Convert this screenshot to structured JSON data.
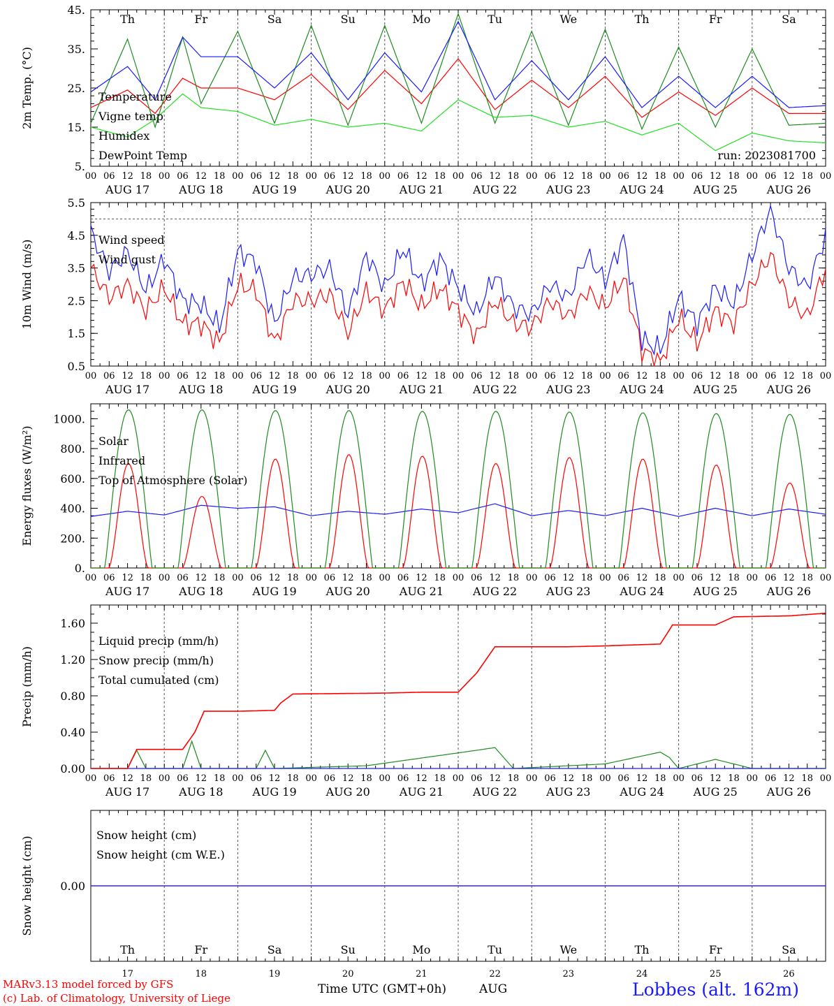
{
  "colors": {
    "red": "#ff0000",
    "green": "#1e8c1e",
    "blue": "#1a1aff",
    "lightgreen": "#22e022",
    "purple": "#8a2be2"
  },
  "run_label": "run: 2023081700",
  "date_labels": [
    "AUG 17",
    "AUG 18",
    "AUG 19",
    "AUG 20",
    "AUG 21",
    "AUG 22",
    "AUG 23",
    "AUG 24",
    "AUG 25",
    "AUG 26"
  ],
  "hour_labels": [
    "00",
    "06",
    "12",
    "18"
  ],
  "weekdays": [
    {
      "label": "Th",
      "weekend": false
    },
    {
      "label": "Fr",
      "weekend": false
    },
    {
      "label": "Sa",
      "weekend": true
    },
    {
      "label": "Su",
      "weekend": true
    },
    {
      "label": "Mo",
      "weekend": false
    },
    {
      "label": "Tu",
      "weekend": false
    },
    {
      "label": "We",
      "weekend": false
    },
    {
      "label": "Th",
      "weekend": false
    },
    {
      "label": "Fr",
      "weekend": false
    },
    {
      "label": "Sa",
      "weekend": true
    }
  ],
  "day_numbers": [
    "17",
    "18",
    "19",
    "20",
    "21",
    "22",
    "23",
    "24",
    "25",
    "26"
  ],
  "xaxis_title": "Time UTC (GMT+0h)",
  "xaxis_month": "AUG",
  "footer": {
    "line1": "MARv3.13 model forced by GFS",
    "line2": "(c) Lab. of Climatology, University of Liege",
    "station": "Lobbes (alt. 162m)"
  },
  "chart_data": [
    {
      "type": "line",
      "ylabel": "2m Temp. (°C)",
      "ytick_labels": [
        "5.",
        "15.",
        "25.",
        "35.",
        "45."
      ],
      "ylim": [
        5,
        45
      ],
      "x_unit": "hours since AUG 17 00 UTC",
      "series": [
        {
          "name": "Temperature",
          "color": "#ff0000",
          "x": [
            0,
            12,
            21,
            30,
            36,
            48,
            60,
            72,
            84,
            96,
            108,
            120,
            132,
            144,
            156,
            168,
            180,
            192,
            204,
            216,
            228,
            240
          ],
          "y": [
            20,
            24.5,
            18.5,
            27.5,
            25,
            25,
            22,
            28.5,
            19.5,
            29.5,
            21,
            32.5,
            19.5,
            27,
            20,
            28,
            17.5,
            24,
            18,
            25,
            18.5,
            18.5
          ]
        },
        {
          "name": "Vigne temp",
          "color": "#1e8c1e",
          "x": [
            0,
            12,
            21,
            30,
            36,
            48,
            60,
            72,
            84,
            96,
            108,
            120,
            132,
            144,
            156,
            168,
            180,
            192,
            204,
            216,
            228,
            240
          ],
          "y": [
            16,
            37.5,
            15,
            38,
            21,
            39.5,
            16,
            41,
            15.5,
            41,
            16,
            44,
            16,
            39.5,
            15.5,
            40,
            14.5,
            35.5,
            15,
            35,
            15.5,
            16
          ]
        },
        {
          "name": "Humidex",
          "color": "#1a1aff",
          "x": [
            0,
            12,
            21,
            30,
            36,
            48,
            60,
            72,
            84,
            96,
            108,
            120,
            132,
            144,
            156,
            168,
            180,
            192,
            204,
            216,
            228,
            240
          ],
          "y": [
            24,
            30.5,
            22,
            38,
            33,
            33,
            25,
            34,
            22,
            34,
            24,
            42,
            22,
            32,
            22,
            33,
            20,
            28,
            20,
            28,
            20,
            20.5
          ]
        },
        {
          "name": "DewPoint Temp",
          "color": "#22e022",
          "x": [
            0,
            12,
            21,
            30,
            36,
            48,
            60,
            72,
            84,
            96,
            108,
            120,
            132,
            144,
            156,
            168,
            180,
            192,
            204,
            216,
            228,
            240
          ],
          "y": [
            15,
            12.5,
            17,
            23.5,
            20,
            19,
            15.5,
            17,
            15,
            16,
            14,
            22,
            17.5,
            18,
            15,
            16.5,
            13,
            16,
            9,
            13.5,
            11.5,
            11
          ]
        }
      ]
    },
    {
      "type": "line",
      "ylabel": "10m Wind (m/s)",
      "ytick_labels": [
        "0.5",
        "1.5",
        "2.5",
        "3.5",
        "4.5",
        "5.5"
      ],
      "ylim": [
        0.5,
        5.5
      ],
      "reference_line": 5,
      "series": [
        {
          "name": "Wind speed",
          "color": "#ff0000",
          "x": [
            0,
            6,
            12,
            18,
            24,
            30,
            36,
            42,
            48,
            54,
            60,
            66,
            72,
            78,
            84,
            90,
            96,
            102,
            108,
            114,
            120,
            126,
            132,
            138,
            144,
            150,
            156,
            162,
            168,
            174,
            180,
            186,
            192,
            198,
            204,
            210,
            216,
            222,
            228,
            234,
            240
          ],
          "y": [
            3.5,
            2.6,
            3,
            2.2,
            2.9,
            1.8,
            1.8,
            1.2,
            3,
            2.8,
            1.2,
            2.5,
            2.5,
            2.7,
            1.5,
            2.8,
            2.2,
            3.1,
            2.3,
            2.9,
            2.2,
            1.4,
            2.5,
            1.8,
            1.7,
            2.5,
            2,
            2.8,
            2.3,
            3.2,
            1,
            0.6,
            2,
            1.2,
            2.2,
            1.8,
            3,
            3.9,
            2.5,
            2,
            3.5
          ]
        },
        {
          "name": "Wind gust",
          "color": "#1a1aff",
          "x": [
            0,
            6,
            12,
            18,
            24,
            30,
            36,
            42,
            48,
            54,
            60,
            66,
            72,
            78,
            84,
            90,
            96,
            102,
            108,
            114,
            120,
            126,
            132,
            138,
            144,
            150,
            156,
            162,
            168,
            174,
            180,
            186,
            192,
            198,
            204,
            210,
            216,
            222,
            228,
            234,
            240
          ],
          "y": [
            4.6,
            3.4,
            4,
            2.8,
            3.8,
            2.5,
            2.4,
            1.7,
            4,
            3.7,
            1.8,
            3.2,
            3.3,
            3.5,
            2.1,
            3.9,
            2.9,
            4.1,
            3,
            3.8,
            2.9,
            2.1,
            3.3,
            2.3,
            2.1,
            3,
            2.6,
            3.9,
            3.1,
            4.4,
            1.3,
            1,
            2.6,
            1.8,
            2.9,
            2.4,
            3.9,
            5.3,
            3.5,
            2.9,
            4.5
          ]
        }
      ]
    },
    {
      "type": "line",
      "ylabel": "Energy fluxes (W/m²)",
      "ytick_labels": [
        "0.",
        "200.",
        "400.",
        "600.",
        "800.",
        "1000."
      ],
      "ylim": [
        0,
        1100
      ],
      "series": [
        {
          "name": "Solar",
          "color": "#ff0000",
          "daily_peak": [
            700,
            480,
            730,
            760,
            750,
            700,
            740,
            730,
            690,
            570
          ]
        },
        {
          "name": "Infrared",
          "color": "#1a1aff",
          "x": [
            0,
            12,
            24,
            36,
            48,
            60,
            72,
            84,
            96,
            108,
            120,
            132,
            144,
            156,
            168,
            180,
            192,
            204,
            216,
            228,
            240
          ],
          "y": [
            345,
            380,
            355,
            420,
            400,
            410,
            350,
            380,
            360,
            395,
            370,
            430,
            350,
            385,
            350,
            400,
            345,
            400,
            350,
            395,
            360
          ]
        },
        {
          "name": "Top of Atmosphere (Solar)",
          "color": "#1e8c1e",
          "daily_peak": [
            1060,
            1060,
            1055,
            1055,
            1050,
            1050,
            1045,
            1040,
            1035,
            1030
          ]
        }
      ]
    },
    {
      "type": "line",
      "ylabel": "Precip (mm/h)",
      "ytick_labels": [
        "0.00",
        "0.40",
        "0.80",
        "1.20",
        "1.60"
      ],
      "ylim": [
        0,
        1.8
      ],
      "series": [
        {
          "name": "Liquid precip (mm/h)",
          "color": "#1e8c1e",
          "x": [
            0,
            12,
            15,
            18,
            30,
            33,
            36,
            54,
            57,
            60,
            90,
            126,
            132,
            138,
            168,
            186,
            189,
            192,
            204,
            216,
            240
          ],
          "y": [
            0,
            0,
            0.2,
            0,
            0,
            0.3,
            0,
            0,
            0.2,
            0,
            0.03,
            0.2,
            0.23,
            0,
            0.05,
            0.18,
            0.12,
            0,
            0.1,
            0,
            0
          ]
        },
        {
          "name": "Snow precip (mm/h)",
          "color": "#1a1aff",
          "x": [
            0,
            240
          ],
          "y": [
            0,
            0
          ]
        },
        {
          "name": "Total cumulated (cm)",
          "color": "#ff0000",
          "x": [
            0,
            12,
            15,
            30,
            34,
            37,
            48,
            60,
            62,
            66,
            96,
            108,
            120,
            126,
            132,
            156,
            168,
            186,
            190,
            204,
            210,
            228,
            240
          ],
          "y": [
            0,
            0,
            0.21,
            0.21,
            0.4,
            0.63,
            0.63,
            0.64,
            0.72,
            0.82,
            0.83,
            0.84,
            0.84,
            1.05,
            1.34,
            1.34,
            1.35,
            1.37,
            1.58,
            1.58,
            1.67,
            1.68,
            1.71
          ]
        }
      ]
    },
    {
      "type": "line",
      "ylabel": "Snow height (cm)",
      "ytick_labels": [
        "0.00"
      ],
      "ylim": [
        -1,
        1
      ],
      "series": [
        {
          "name": "Snow height (cm)",
          "color": "#ff0000",
          "x": [
            0,
            240
          ],
          "y": [
            0,
            0
          ]
        },
        {
          "name": "Snow height (cm W.E.)",
          "color": "#1a1aff",
          "x": [
            0,
            240
          ],
          "y": [
            0,
            0
          ]
        }
      ]
    }
  ]
}
